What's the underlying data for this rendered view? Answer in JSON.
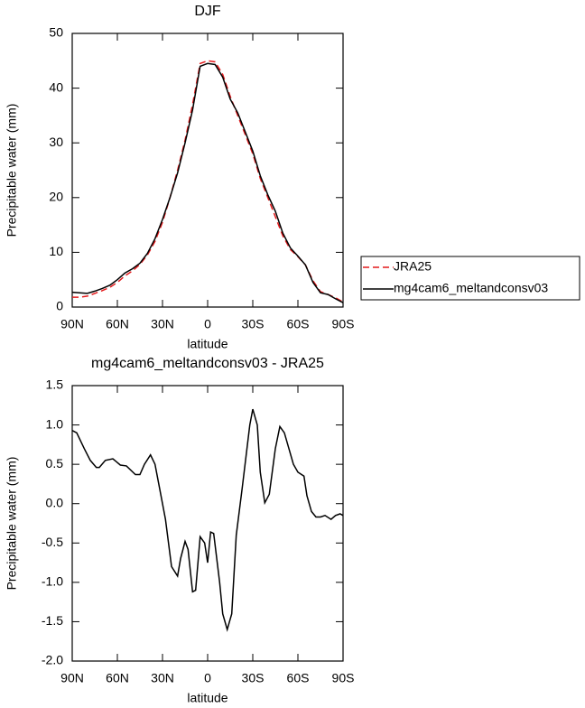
{
  "chart_data": [
    {
      "type": "line",
      "title": "DJF",
      "x_label": "latitude",
      "y_label": "Precipitable water (mm)",
      "x": [
        90,
        85,
        80,
        75,
        70,
        65,
        60,
        55,
        50,
        45,
        40,
        35,
        30,
        25,
        20,
        15,
        10,
        5,
        0,
        -5,
        -10,
        -15,
        -20,
        -25,
        -30,
        -35,
        -40,
        -45,
        -50,
        -55,
        -60,
        -65,
        -70,
        -75,
        -80,
        -85,
        -90
      ],
      "series": [
        {
          "name": "JRA25",
          "color": "#e41a1c",
          "linestyle": "dashed",
          "values": [
            1.8,
            1.8,
            2.0,
            2.5,
            3.0,
            3.6,
            4.5,
            5.7,
            6.6,
            7.8,
            9.5,
            12.0,
            15.5,
            20,
            25,
            30.5,
            37,
            44.5,
            45,
            44.8,
            42.5,
            38.5,
            35,
            31.5,
            28,
            23.5,
            20,
            16.5,
            13,
            10.5,
            9.2,
            7.7,
            4.8,
            2.8,
            2.3,
            1.7,
            0.9
          ]
        },
        {
          "name": "mg4cam6_meltandconsv03",
          "color": "#000000",
          "linestyle": "solid",
          "values": [
            2.7,
            2.6,
            2.5,
            2.9,
            3.4,
            4.0,
            5.0,
            6.2,
            7.0,
            8.0,
            9.8,
            12.5,
            16,
            20,
            24.5,
            30,
            36,
            44,
            44.5,
            44.3,
            42,
            38,
            35.5,
            32,
            28.5,
            24,
            20.5,
            17.5,
            13.5,
            10.8,
            9.3,
            7.7,
            4.5,
            2.6,
            2.3,
            1.5,
            0.8
          ]
        }
      ],
      "xlim": [
        90,
        -90
      ],
      "xticks": [
        {
          "value": 90,
          "label": "90N"
        },
        {
          "value": 60,
          "label": "60N"
        },
        {
          "value": 30,
          "label": "30N"
        },
        0,
        {
          "value": -30,
          "label": "30S"
        },
        {
          "value": -60,
          "label": "60S"
        },
        {
          "value": -90,
          "label": "90S"
        }
      ],
      "ylim": [
        0,
        50
      ],
      "yticks": [
        0,
        10,
        20,
        30,
        40,
        50
      ],
      "legend": "right"
    },
    {
      "type": "line",
      "title": "mg4cam6_meltandconsv03 - JRA25",
      "x_label": "latitude",
      "y_label": "Precipitable water (mm)",
      "x": [
        90,
        87,
        82,
        78,
        74,
        72,
        68,
        63,
        58,
        54,
        48,
        45,
        42,
        38,
        35,
        32,
        28,
        24,
        20,
        18,
        15,
        13,
        10,
        8,
        5,
        2,
        0,
        -2,
        -4,
        -8,
        -10,
        -13,
        -16,
        -19,
        -23,
        -28,
        -30,
        -33,
        -35,
        -38,
        -41,
        -45,
        -48,
        -51,
        -54,
        -57,
        -60,
        -64,
        -66,
        -69,
        -72,
        -75,
        -78,
        -82,
        -85,
        -88,
        -90
      ],
      "series": [
        {
          "name": "mg4cam6_meltandconsv03 - JRA25",
          "color": "#000000",
          "linestyle": "solid",
          "values": [
            0.93,
            0.9,
            0.7,
            0.55,
            0.46,
            0.46,
            0.55,
            0.57,
            0.49,
            0.48,
            0.37,
            0.37,
            0.5,
            0.62,
            0.5,
            0.2,
            -0.2,
            -0.8,
            -0.92,
            -0.7,
            -0.48,
            -0.58,
            -1.12,
            -1.1,
            -0.42,
            -0.5,
            -0.75,
            -0.36,
            -0.38,
            -1.0,
            -1.4,
            -1.6,
            -1.4,
            -0.4,
            0.2,
            1.0,
            1.2,
            1.0,
            0.4,
            0.01,
            0.12,
            0.7,
            0.98,
            0.9,
            0.7,
            0.5,
            0.4,
            0.35,
            0.1,
            -0.1,
            -0.17,
            -0.17,
            -0.15,
            -0.2,
            -0.15,
            -0.13,
            -0.15
          ]
        }
      ],
      "xlim": [
        90,
        -90
      ],
      "xticks": [
        {
          "value": 90,
          "label": "90N"
        },
        {
          "value": 60,
          "label": "60N"
        },
        {
          "value": 30,
          "label": "30N"
        },
        0,
        {
          "value": -30,
          "label": "30S"
        },
        {
          "value": -60,
          "label": "60S"
        },
        {
          "value": -90,
          "label": "90S"
        }
      ],
      "ylim": [
        -2,
        1.5
      ],
      "yticks": [
        1.5,
        {
          "value": 1,
          "label": "1.0"
        },
        0.5,
        {
          "value": 0,
          "label": "0.0"
        },
        -0.5,
        {
          "value": -1,
          "label": "-1.0"
        },
        -1.5,
        {
          "value": -2,
          "label": "-2.0"
        }
      ]
    }
  ]
}
